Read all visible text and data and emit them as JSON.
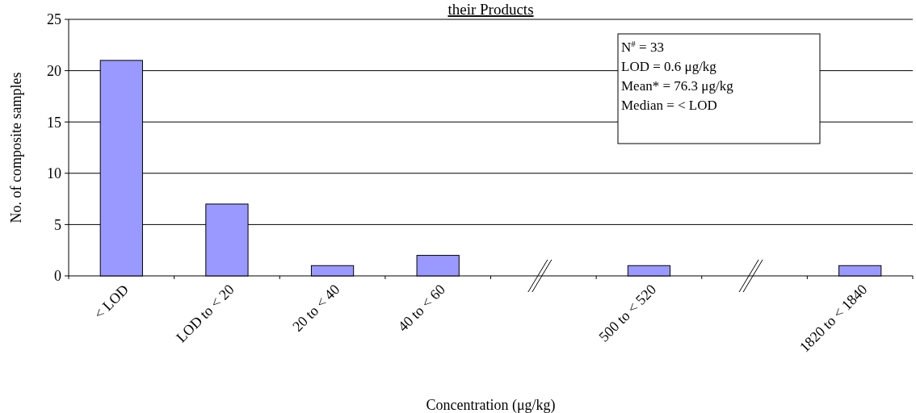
{
  "chart_data": {
    "type": "bar",
    "title": "their Products",
    "xlabel": "Concentration (μg/kg)",
    "ylabel": "No. of composite samples",
    "categories": [
      "< LOD",
      "LOD to < 20",
      "20 to < 40",
      "40 to < 60",
      null,
      "500 to < 520",
      null,
      "1820 to < 1840"
    ],
    "values": [
      21,
      7,
      1,
      2,
      null,
      1,
      null,
      1
    ],
    "color": "#9999ff",
    "ylim": [
      0,
      25
    ],
    "yticks": [
      0,
      5,
      10,
      15,
      20,
      25
    ],
    "grid": "y",
    "annotations": [
      "N$^{#}$ = 33",
      "LOD = 0.6 μg/kg",
      "Mean* = 76.3 μg/kg",
      "Median = < LOD"
    ]
  }
}
